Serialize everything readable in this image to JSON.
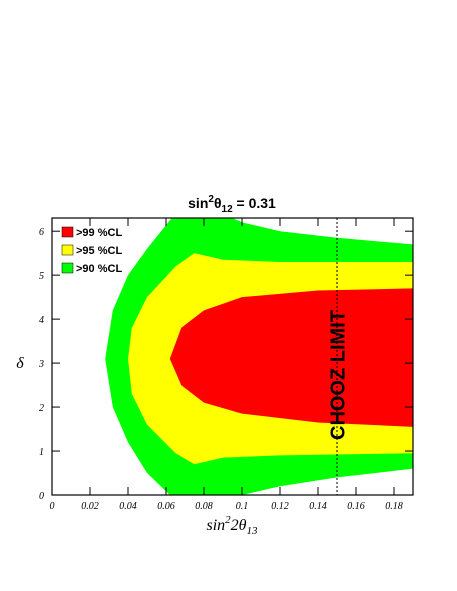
{
  "chart_data": {
    "type": "contour",
    "title": [
      "sin",
      "2",
      "θ",
      "12",
      " = 0.31"
    ],
    "x_label": [
      "sin",
      "2",
      "2θ",
      "13"
    ],
    "y_label": "δ",
    "xlim": [
      0,
      0.19
    ],
    "ylim": [
      0,
      6.3
    ],
    "xticks": [
      0,
      0.02,
      0.04,
      0.06,
      0.08,
      0.1,
      0.12,
      0.14,
      0.16,
      0.18
    ],
    "yticks": [
      0,
      1,
      2,
      3,
      4,
      5,
      6
    ],
    "legend": "top-left",
    "series": [
      {
        "name": ">99 %CL",
        "color": "#ff0000",
        "x": [
          0.19,
          0.14,
          0.1,
          0.08,
          0.068,
          0.062,
          0.068,
          0.08,
          0.1,
          0.14,
          0.19
        ],
        "y": [
          4.7,
          4.65,
          4.5,
          4.2,
          3.8,
          3.1,
          2.5,
          2.1,
          1.85,
          1.65,
          1.55
        ]
      },
      {
        "name": ">95 %CL",
        "color": "#ffff00",
        "x": [
          0.19,
          0.12,
          0.09,
          0.075,
          0.065,
          0.05,
          0.042,
          0.04,
          0.042,
          0.05,
          0.065,
          0.075,
          0.09,
          0.12,
          0.19
        ],
        "y": [
          5.3,
          5.3,
          5.35,
          5.5,
          5.2,
          4.5,
          3.8,
          3.1,
          2.3,
          1.6,
          0.95,
          0.7,
          0.85,
          0.9,
          0.95
        ]
      },
      {
        "name": ">90 %CL",
        "color": "#00ff00",
        "x": [
          0.19,
          0.15,
          0.12,
          0.1,
          0.095,
          0.063,
          0.05,
          0.04,
          0.032,
          0.028,
          0.032,
          0.04,
          0.05,
          0.062,
          0.1,
          0.12,
          0.15,
          0.19
        ],
        "y": [
          5.7,
          5.85,
          6.0,
          6.2,
          6.3,
          6.3,
          5.6,
          5.0,
          4.2,
          3.1,
          2.0,
          1.2,
          0.5,
          0,
          0,
          0.2,
          0.4,
          0.6
        ]
      }
    ],
    "chooz_limit": {
      "x": 0.15,
      "label": "CHOOZ LIMIT"
    }
  }
}
